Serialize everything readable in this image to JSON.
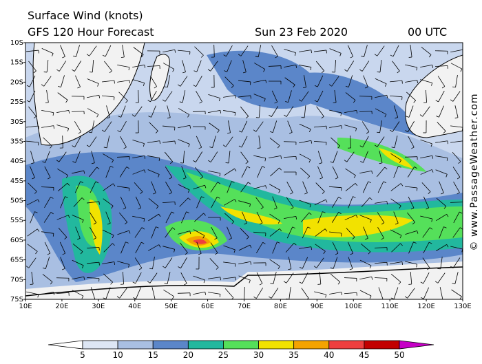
{
  "header": {
    "title": "Surface Wind (knots)",
    "subtitle": "GFS 120 Hour Forecast",
    "date": "Sun 23 Feb 2020",
    "time": "00 UTC"
  },
  "lat_labels": [
    "10S",
    "15S",
    "20S",
    "25S",
    "30S",
    "35S",
    "40S",
    "45S",
    "50S",
    "55S",
    "60S",
    "65S",
    "70S",
    "75S"
  ],
  "lon_labels": [
    "10E",
    "20E",
    "30E",
    "40E",
    "50E",
    "60E",
    "70E",
    "80E",
    "90E",
    "100E",
    "110E",
    "120E",
    "130E"
  ],
  "colorbar": {
    "labels": [
      5,
      10,
      15,
      20,
      25,
      30,
      35,
      40,
      45,
      50
    ],
    "colors": [
      "#ffffff",
      "#dde6f4",
      "#a9bfe2",
      "#5b86c9",
      "#22b89e",
      "#55e05a",
      "#f2e200",
      "#f4a300",
      "#ee3f3f",
      "#c20000",
      "#c600c6"
    ]
  },
  "credit": "© www.PassageWeather.com"
}
